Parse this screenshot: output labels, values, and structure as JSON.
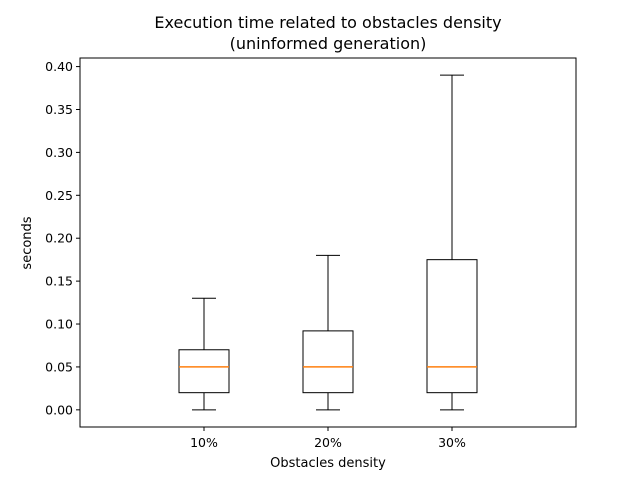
{
  "chart_data": {
    "type": "box",
    "title_lines": [
      "Execution time related to obstacles density",
      "(uninformed generation)"
    ],
    "xlabel": "Obstacles density",
    "ylabel": "seconds",
    "ylim": [
      -0.02,
      0.41
    ],
    "yticks": [
      0.0,
      0.05,
      0.1,
      0.15,
      0.2,
      0.25,
      0.3,
      0.35,
      0.4
    ],
    "ytick_labels": [
      "0.00",
      "0.05",
      "0.10",
      "0.15",
      "0.20",
      "0.25",
      "0.30",
      "0.35",
      "0.40"
    ],
    "categories": [
      "10%",
      "20%",
      "30%"
    ],
    "boxes": [
      {
        "category": "10%",
        "whisker_low": 0.0,
        "q1": 0.02,
        "median": 0.05,
        "q3": 0.07,
        "whisker_high": 0.13
      },
      {
        "category": "20%",
        "whisker_low": 0.0,
        "q1": 0.02,
        "median": 0.05,
        "q3": 0.092,
        "whisker_high": 0.18
      },
      {
        "category": "30%",
        "whisker_low": 0.0,
        "q1": 0.02,
        "median": 0.05,
        "q3": 0.175,
        "whisker_high": 0.39
      }
    ],
    "grid": false,
    "colors": {
      "box": "#000000",
      "median": "#ff7f0e"
    }
  }
}
